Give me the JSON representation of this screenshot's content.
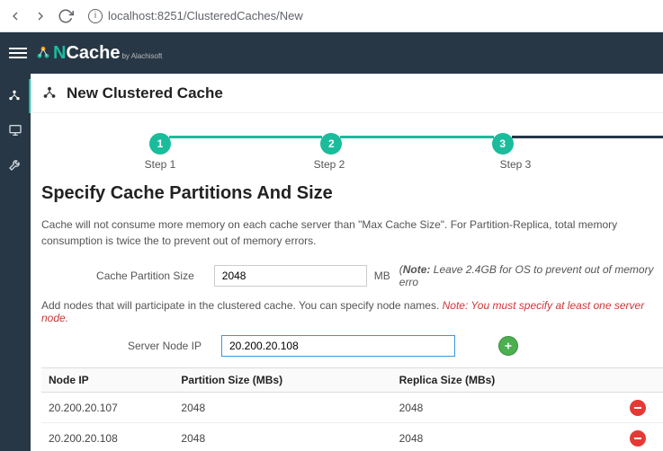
{
  "browser": {
    "url": "localhost:8251/ClusteredCaches/New"
  },
  "brand": {
    "name_prefix": "N",
    "name_rest": "Cache",
    "subtitle": "by Alachisoft"
  },
  "page": {
    "title": "New Clustered Cache"
  },
  "stepper": {
    "steps": [
      {
        "num": "1",
        "label": "Step 1"
      },
      {
        "num": "2",
        "label": "Step 2"
      },
      {
        "num": "3",
        "label": "Step 3"
      }
    ],
    "colors": {
      "active": "#1abc9c",
      "inactive": "#273746"
    }
  },
  "section": {
    "title": "Specify Cache Partitions And Size",
    "description": "Cache will not consume more memory on each cache server than \"Max Cache Size\". For Partition-Replica, total memory consumption is twice the to prevent out of memory errors."
  },
  "form": {
    "partition_label": "Cache Partition Size",
    "partition_value": "2048",
    "partition_unit": "MB",
    "partition_hint_prefix": "(",
    "partition_hint_bold": "Note:",
    "partition_hint_rest": " Leave 2.4GB for OS to prevent out of memory erro",
    "nodes_pretext": "Add nodes that will participate in the clustered cache. You can specify node names. ",
    "nodes_note": "Note: You must specify at least one server node.",
    "nodeip_label": "Server Node IP",
    "nodeip_value": "20.200.20.108"
  },
  "table": {
    "headers": {
      "ip": "Node IP",
      "partition": "Partition Size (MBs)",
      "replica": "Replica Size (MBs)"
    },
    "rows": [
      {
        "ip": "20.200.20.107",
        "partition": "2048",
        "replica": "2048"
      },
      {
        "ip": "20.200.20.108",
        "partition": "2048",
        "replica": "2048"
      }
    ]
  },
  "colors": {
    "header_bg": "#273746",
    "accent": "#1abc9c",
    "add_btn": "#4caf50",
    "remove_btn": "#e53935"
  }
}
